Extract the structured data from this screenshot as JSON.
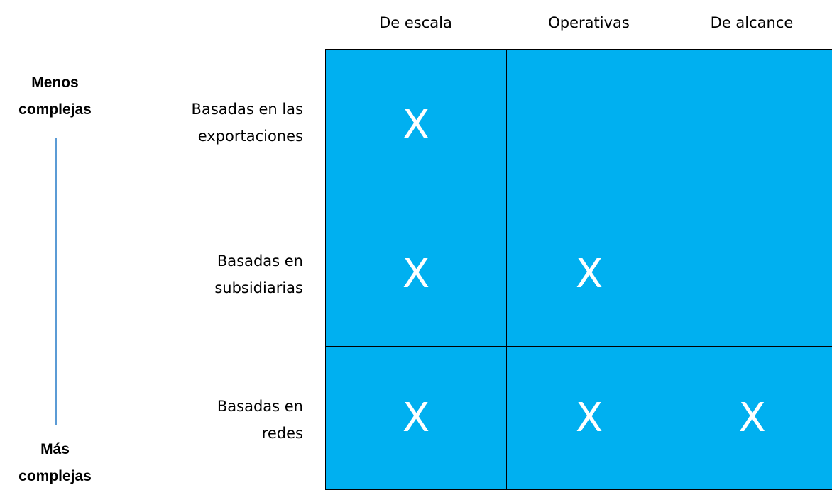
{
  "axis": {
    "top": [
      "Menos",
      "complejas"
    ],
    "bottom": [
      "Más",
      "complejas"
    ]
  },
  "table": {
    "columns": [
      "De escala",
      "Operativas",
      "De alcance"
    ],
    "row_labels": [
      [
        "Basadas en las",
        "exportaciones"
      ],
      [
        "Basadas en",
        "subsidiarias"
      ],
      [
        "Basadas en",
        "redes"
      ]
    ],
    "rows": [
      [
        "X",
        null,
        null
      ],
      [
        "X",
        "X",
        null
      ],
      [
        "X",
        "X",
        "X"
      ]
    ]
  }
}
